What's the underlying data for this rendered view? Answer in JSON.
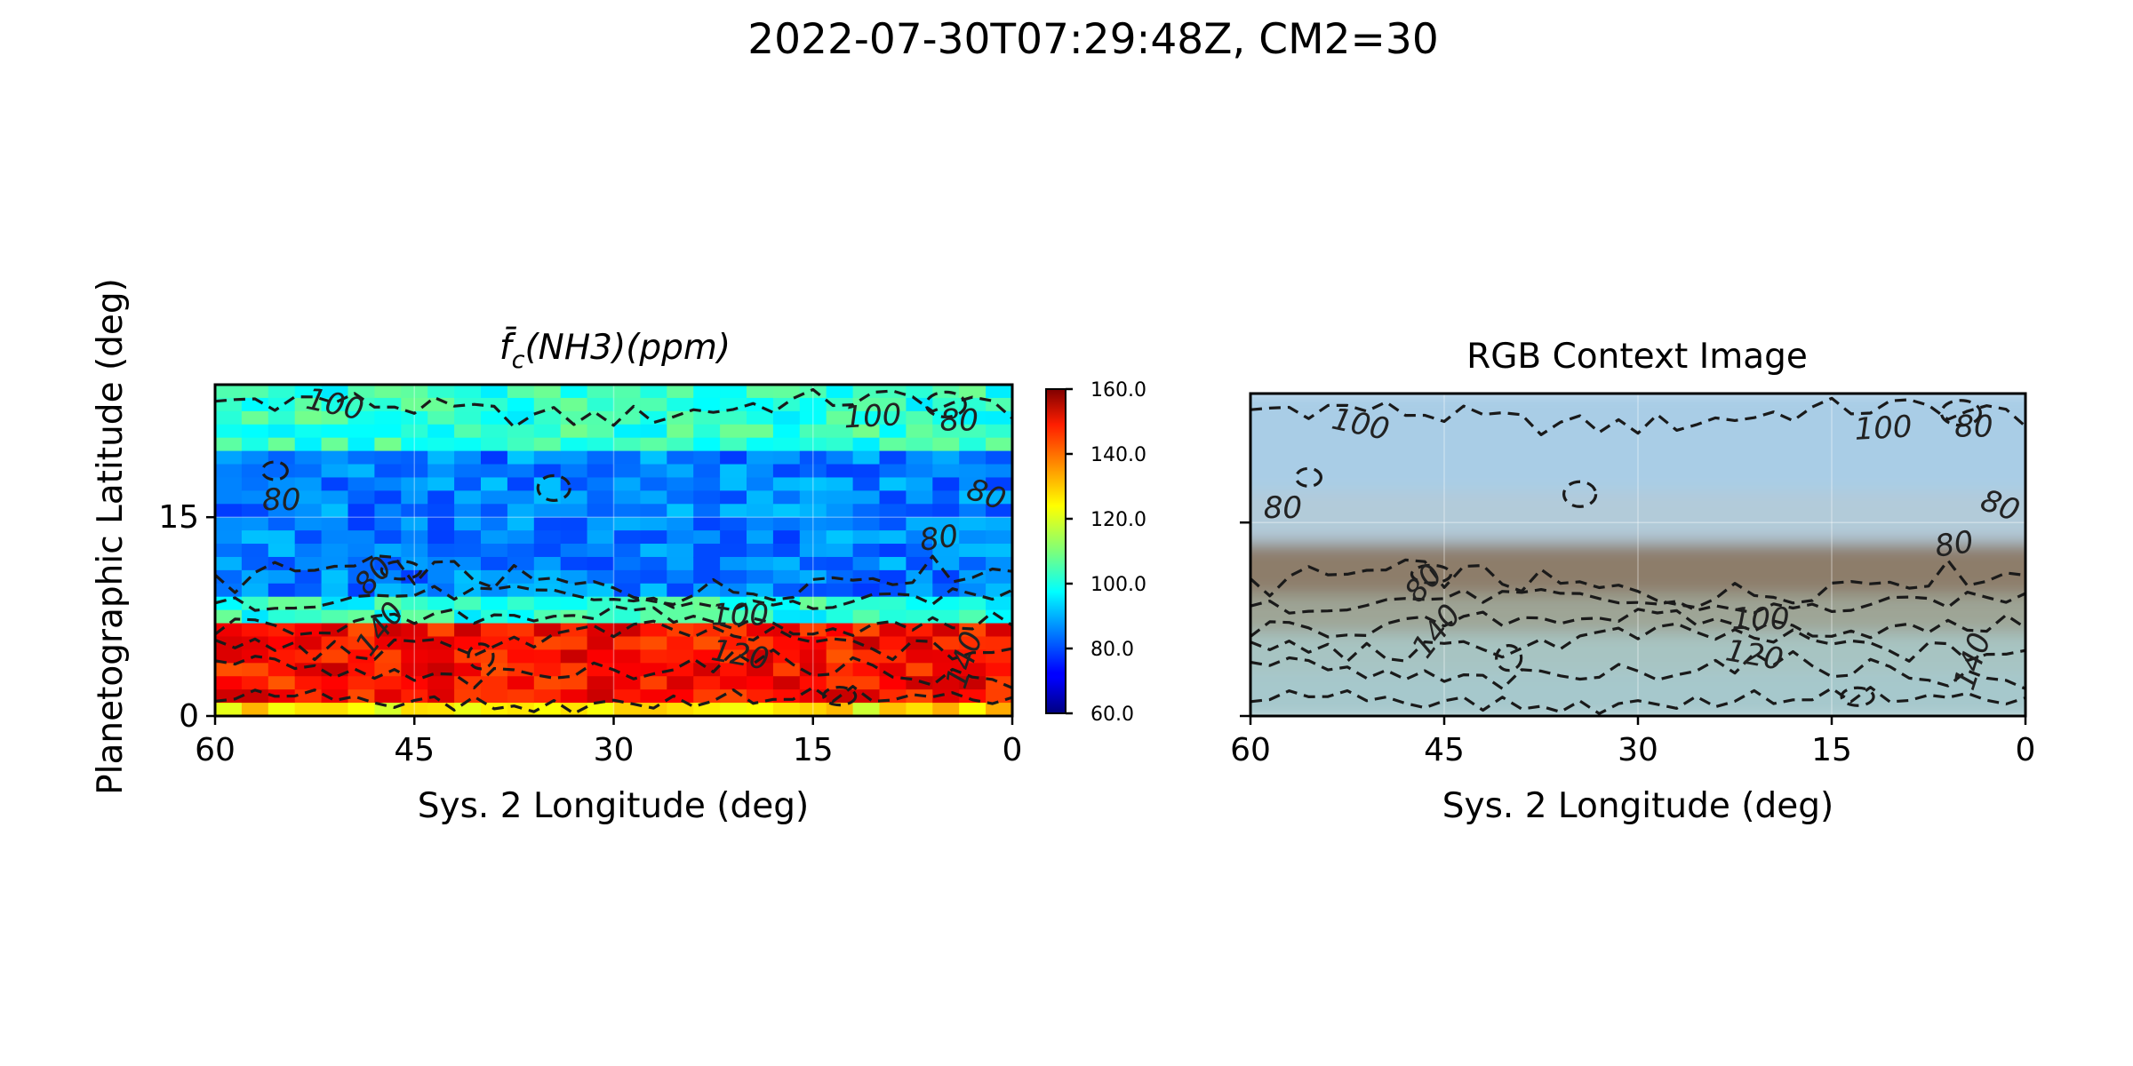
{
  "figure": {
    "suptitle": "2022-07-30T07:29:48Z, CM2=30",
    "ylabel": "Planetographic Latitude (deg)"
  },
  "chart_data": [
    {
      "type": "heatmap",
      "panel": "left",
      "title_main": "f̄",
      "title_sub": "c",
      "title_rest": "(NH3)(ppm)",
      "xlabel": "Sys. 2 Longitude (deg)",
      "xlim": [
        60,
        0
      ],
      "ylim": [
        0,
        25
      ],
      "xticks": [
        60,
        45,
        30,
        15,
        0
      ],
      "xtick_labels": [
        "60",
        "45",
        "30",
        "15",
        "0"
      ],
      "yticks": [
        0,
        15
      ],
      "ytick_labels": [
        "0",
        "15"
      ],
      "colormap": "jet",
      "colorbar": {
        "min": 60,
        "max": 160,
        "ticks": [
          60,
          80,
          100,
          120,
          140,
          160
        ],
        "tick_labels": [
          "60.0",
          "80.0",
          "100.0",
          "120.0",
          "140.0",
          "160.0"
        ]
      },
      "grid": {
        "lon_step": 2,
        "lat_step": 1
      },
      "zones": [
        {
          "lat_min": 20,
          "lat_max": 25,
          "value": 102
        },
        {
          "lat_min": 9.5,
          "lat_max": 20,
          "value": 85
        },
        {
          "lat_min": 7,
          "lat_max": 9.5,
          "value": 101
        },
        {
          "lat_min": 1.5,
          "lat_max": 7,
          "value": 146
        },
        {
          "lat_min": 0,
          "lat_max": 1.5,
          "value": 124
        }
      ],
      "contour_labels": [
        {
          "text": "100",
          "lon": 51,
          "lat": 23.4,
          "angle": 12
        },
        {
          "text": "100",
          "lon": 10.5,
          "lat": 22.5,
          "angle": -3
        },
        {
          "text": "80",
          "lon": 4,
          "lat": 22.2,
          "angle": 0
        },
        {
          "text": "80",
          "lon": 55,
          "lat": 16.2,
          "angle": 0
        },
        {
          "text": "80",
          "lon": 2,
          "lat": 16.6,
          "angle": 20
        },
        {
          "text": "80",
          "lon": 5.5,
          "lat": 13.3,
          "angle": -8
        },
        {
          "text": "80",
          "lon": 48,
          "lat": 10.5,
          "angle": -48
        },
        {
          "text": "140",
          "lon": 47.5,
          "lat": 6.5,
          "angle": -52
        },
        {
          "text": "100",
          "lon": 20.5,
          "lat": 7.5,
          "angle": 0
        },
        {
          "text": "120",
          "lon": 20.5,
          "lat": 4.5,
          "angle": 10
        },
        {
          "text": "140",
          "lon": 3.5,
          "lat": 4.2,
          "angle": -72
        }
      ]
    },
    {
      "type": "image",
      "panel": "right",
      "title": "RGB Context Image",
      "xlabel": "Sys. 2 Longitude (deg)",
      "xlim": [
        60,
        0
      ],
      "ylim": [
        0,
        25
      ],
      "xticks": [
        60,
        45,
        30,
        15,
        0
      ],
      "xtick_labels": [
        "60",
        "45",
        "30",
        "15",
        "0"
      ],
      "yticks": [
        0,
        15
      ],
      "bands": [
        {
          "lat_min": 17,
          "lat_max": 25,
          "color": "#a9cde6"
        },
        {
          "lat_min": 13,
          "lat_max": 17,
          "color": "#b2cbd9"
        },
        {
          "lat_min": 9,
          "lat_max": 13,
          "color": "#8d7d6b"
        },
        {
          "lat_min": 6,
          "lat_max": 9,
          "color": "#9ea596"
        },
        {
          "lat_min": 3,
          "lat_max": 6,
          "color": "#a7c4c2"
        },
        {
          "lat_min": 0,
          "lat_max": 3,
          "color": "#a6c8cc"
        }
      ],
      "contour_labels": [
        {
          "text": "100",
          "lon": 51.5,
          "lat": 22.5,
          "angle": 12
        },
        {
          "text": "100",
          "lon": 11,
          "lat": 22.2,
          "angle": -3
        },
        {
          "text": "80",
          "lon": 4,
          "lat": 22.3,
          "angle": 0
        },
        {
          "text": "80",
          "lon": 57.5,
          "lat": 16,
          "angle": 0
        },
        {
          "text": "80",
          "lon": 2,
          "lat": 16.2,
          "angle": 20
        },
        {
          "text": "80",
          "lon": 5.5,
          "lat": 13.2,
          "angle": -8
        },
        {
          "text": "80",
          "lon": 46.5,
          "lat": 10.2,
          "angle": -48
        },
        {
          "text": "140",
          "lon": 45.5,
          "lat": 6.5,
          "angle": -52
        },
        {
          "text": "100",
          "lon": 20.5,
          "lat": 7.4,
          "angle": 0
        },
        {
          "text": "120",
          "lon": 21,
          "lat": 4.6,
          "angle": 10
        },
        {
          "text": "140",
          "lon": 4,
          "lat": 4.2,
          "angle": -72
        }
      ]
    }
  ]
}
